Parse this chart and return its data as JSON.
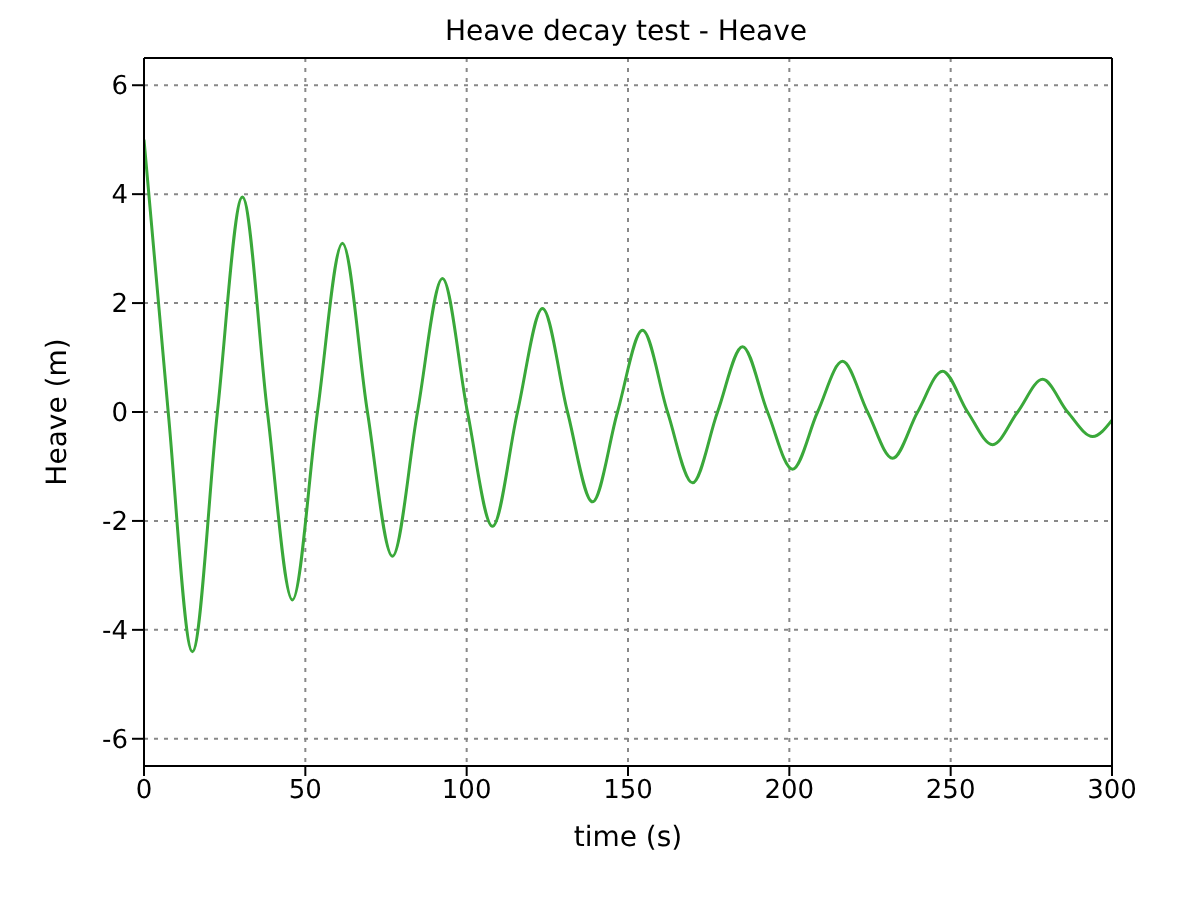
{
  "chart_data": {
    "type": "line",
    "title": "Heave decay test - Heave",
    "xlabel": "time (s)",
    "ylabel": "Heave (m)",
    "x": [
      0,
      7.5,
      15,
      22.75,
      30.5,
      38.25,
      46,
      53.75,
      61.5,
      69.25,
      77,
      84.75,
      92.5,
      100.25,
      108,
      115.75,
      123.5,
      131.25,
      139,
      146.75,
      154.5,
      162.25,
      170,
      177.75,
      185.5,
      193.25,
      201,
      208.75,
      216.5,
      224.25,
      232,
      239.75,
      247.5,
      255.25,
      263,
      270.75,
      278.5,
      286.25,
      294,
      300
    ],
    "series": [
      {
        "color": "#3aa83a",
        "values": [
          5.0,
          0,
          -4.4,
          0,
          3.95,
          0,
          -3.45,
          0,
          3.1,
          0,
          -2.65,
          0,
          2.45,
          0,
          -2.1,
          0,
          1.9,
          0,
          -1.65,
          0,
          1.5,
          0,
          -1.3,
          0,
          1.2,
          0,
          -1.05,
          0,
          0.93,
          0,
          -0.85,
          0,
          0.75,
          0,
          -0.6,
          0,
          0.6,
          0,
          -0.45,
          -0.15
        ]
      }
    ],
    "xlim": [
      0,
      300
    ],
    "xticks": [
      0,
      50,
      100,
      150,
      200,
      250,
      300
    ],
    "ylim": [
      -6.5,
      6.5
    ],
    "yticks": [
      -6,
      -4,
      -2,
      0,
      2,
      4,
      6
    ],
    "grid": true,
    "line_style": "solid",
    "legend": false
  }
}
